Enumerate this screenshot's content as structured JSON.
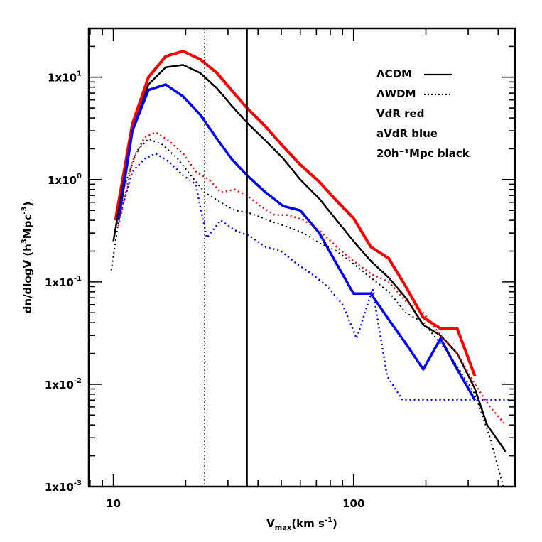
{
  "chart_data": {
    "type": "line",
    "title": "",
    "xlabel": "V_max(km s^-1)",
    "xlabel_parts": {
      "main": "V",
      "sub": "max",
      "rest": "(km s",
      "sup": "-1",
      "end": ")"
    },
    "ylabel": "dn/dlogV (h^3Mpc^-3)",
    "ylabel_parts": {
      "a": "dn/dlogV (h",
      "sup1": "3",
      "b": "Mpc",
      "sup2": "-3",
      "c": ")"
    },
    "xscale": "log",
    "yscale": "log",
    "xlim": [
      7.9,
      470
    ],
    "ylim": [
      0.001,
      30
    ],
    "xticks": [
      {
        "value": 10,
        "label": "10"
      },
      {
        "value": 100,
        "label": "100"
      }
    ],
    "yticks": [
      {
        "value": 0.001,
        "base": "1x10",
        "exp": "-3"
      },
      {
        "value": 0.01,
        "base": "1x10",
        "exp": "-2"
      },
      {
        "value": 0.1,
        "base": "1x10",
        "exp": "-1"
      },
      {
        "value": 1,
        "base": "1x10",
        "exp": "0"
      },
      {
        "value": 10,
        "base": "1x10",
        "exp": "1"
      }
    ],
    "vlines": [
      {
        "x": 24,
        "style": "dotted",
        "color": "#000000"
      },
      {
        "x": 36,
        "style": "solid",
        "color": "#000000"
      }
    ],
    "legend": {
      "position": "top-right",
      "entries": [
        {
          "text": "ΛCDM",
          "sample": "solid"
        },
        {
          "text": "ΛWDM",
          "sample": "dotted"
        },
        {
          "text": "VdR red",
          "sample": "none"
        },
        {
          "text": "aVdR blue",
          "sample": "none"
        },
        {
          "text": "20h⁻¹Mpc black",
          "sample": "none"
        }
      ]
    },
    "series": [
      {
        "color": "#ff0000",
        "style": "solid",
        "width": 4,
        "x": [
          10.2,
          12,
          14,
          16.5,
          19.5,
          23,
          27,
          31,
          36,
          43,
          51,
          60,
          72,
          85,
          100,
          118,
          140,
          165,
          195,
          230,
          270,
          320
        ],
        "y": [
          0.4,
          3.5,
          10,
          16,
          18,
          15,
          11,
          7.5,
          5,
          3.3,
          2.1,
          1.4,
          0.95,
          0.62,
          0.42,
          0.22,
          0.17,
          0.09,
          0.045,
          0.035,
          0.035,
          0.012
        ]
      },
      {
        "color": "#000000",
        "style": "solid",
        "width": 2.5,
        "x": [
          10,
          12,
          14,
          16.5,
          19.5,
          23,
          27,
          31,
          36,
          43,
          51,
          60,
          72,
          85,
          100,
          118,
          140,
          165,
          195,
          230,
          270,
          320,
          360,
          430
        ],
        "y": [
          0.25,
          3,
          8.5,
          12.5,
          13.2,
          11,
          7.8,
          5.3,
          3.6,
          2.4,
          1.6,
          1,
          0.65,
          0.4,
          0.25,
          0.16,
          0.11,
          0.07,
          0.038,
          0.03,
          0.02,
          0.009,
          0.004,
          0.0022
        ]
      },
      {
        "color": "#0000ff",
        "style": "solid",
        "width": 3.5,
        "x": [
          10.5,
          12,
          14,
          16.5,
          19.5,
          23,
          27,
          31,
          36,
          43,
          51,
          60,
          72,
          85,
          100,
          118,
          140,
          165,
          195,
          230,
          270,
          320
        ],
        "y": [
          0.4,
          3,
          7.5,
          8.5,
          6.5,
          4.3,
          2.5,
          1.6,
          1.1,
          0.75,
          0.55,
          0.5,
          0.3,
          0.15,
          0.077,
          0.077,
          0.043,
          0.025,
          0.014,
          0.028,
          0.014,
          0.007
        ]
      },
      {
        "color": "#ff0000",
        "style": "dotted",
        "width": 2.5,
        "x": [
          10.5,
          12,
          13.5,
          15,
          17,
          19.5,
          22,
          25,
          28,
          32,
          36,
          41,
          47,
          54,
          62,
          72,
          85,
          100,
          118,
          140,
          165,
          195,
          230,
          270,
          320,
          370,
          430
        ],
        "y": [
          0.35,
          1.5,
          2.6,
          2.9,
          2.4,
          1.8,
          1.2,
          1,
          0.75,
          0.8,
          0.7,
          0.55,
          0.45,
          0.45,
          0.4,
          0.32,
          0.22,
          0.16,
          0.12,
          0.1,
          0.065,
          0.05,
          0.03,
          0.02,
          0.01,
          0.006,
          0.004
        ]
      },
      {
        "color": "#000000",
        "style": "dotted",
        "width": 2,
        "x": [
          9.8,
          11,
          12.5,
          14,
          16,
          18.5,
          21,
          24,
          28,
          32,
          36,
          41,
          47,
          54,
          62,
          72,
          85,
          100,
          118,
          140,
          165,
          195,
          230,
          270,
          320,
          370,
          420
        ],
        "y": [
          0.13,
          0.8,
          1.9,
          2.5,
          2.2,
          1.6,
          1.1,
          0.75,
          0.6,
          0.5,
          0.48,
          0.43,
          0.38,
          0.34,
          0.3,
          0.24,
          0.2,
          0.15,
          0.11,
          0.08,
          0.05,
          0.04,
          0.025,
          0.015,
          0.008,
          0.003,
          0.001
        ]
      },
      {
        "color": "#0000ff",
        "style": "dotted",
        "width": 2.5,
        "x": [
          10.5,
          12,
          13.5,
          15,
          17,
          19.5,
          22,
          24.5,
          28,
          32,
          37,
          43,
          50,
          58,
          67,
          78,
          90,
          103,
          120,
          138,
          160,
          185,
          215,
          250,
          290,
          340,
          400,
          450
        ],
        "y": [
          0.4,
          1.2,
          1.6,
          1.8,
          1.5,
          1.1,
          0.9,
          0.27,
          0.4,
          0.32,
          0.28,
          0.22,
          0.2,
          0.15,
          0.12,
          0.09,
          0.06,
          0.028,
          0.085,
          0.012,
          0.007,
          0.007,
          0.007,
          0.007,
          0.007,
          0.007,
          0.007,
          0.007
        ]
      }
    ]
  }
}
